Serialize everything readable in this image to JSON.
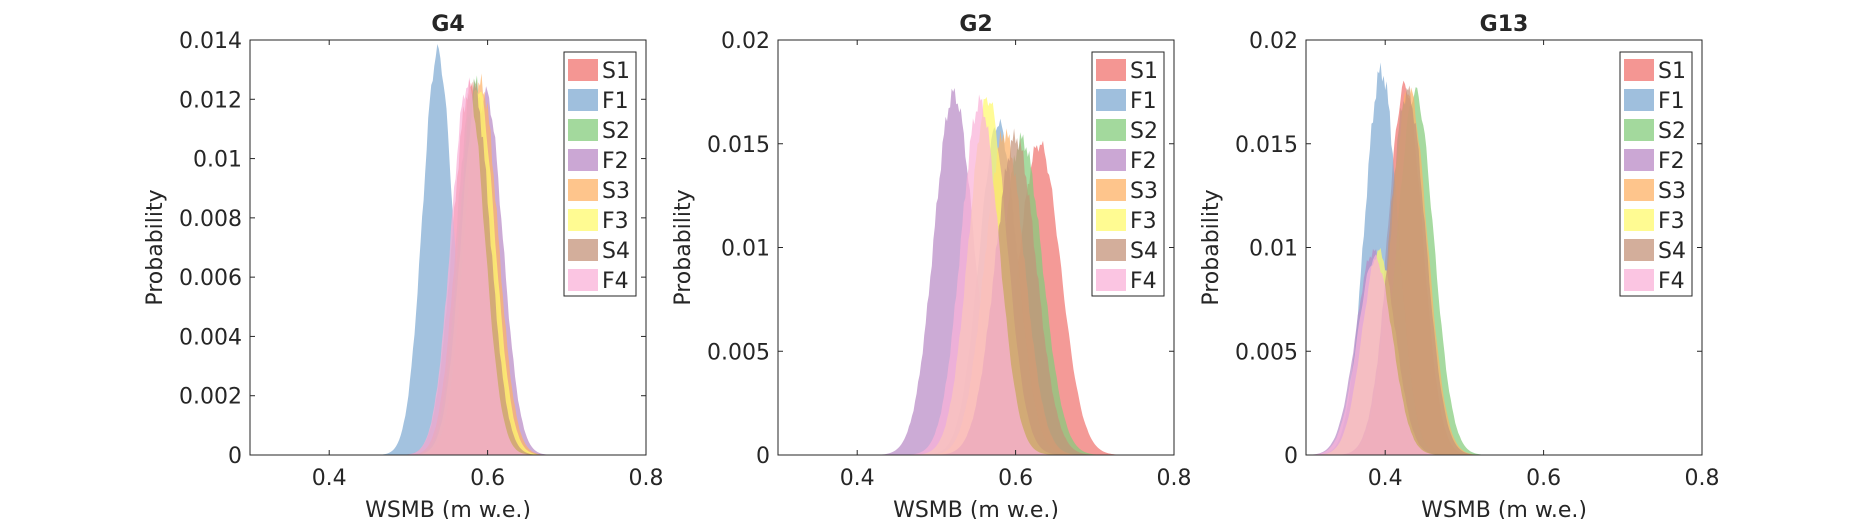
{
  "figure": {
    "background": "#ffffff"
  },
  "chart_data": [
    {
      "type": "area",
      "title": "G4",
      "xlabel": "WSMB (m w.e.)",
      "ylabel": "Probability",
      "xlim": [
        0.3,
        0.8
      ],
      "ylim": [
        0,
        0.014
      ],
      "xticks": [
        0.4,
        0.6,
        0.8
      ],
      "xtick_labels": [
        "0.4",
        "0.6",
        "0.8"
      ],
      "yticks": [
        0,
        0.002,
        0.004,
        0.006,
        0.008,
        0.01,
        0.012,
        0.014
      ],
      "ytick_labels": [
        "0",
        "0.002",
        "0.004",
        "0.006",
        "0.008",
        "0.01",
        "0.012",
        "0.014"
      ],
      "legend_position": "top-right",
      "series": [
        {
          "name": "S1",
          "color": "#f0736f",
          "mean": 0.578,
          "sd": 0.022,
          "peak": 0.0124
        },
        {
          "name": "F1",
          "color": "#7faad2",
          "mean": 0.537,
          "sd": 0.019,
          "peak": 0.0136
        },
        {
          "name": "S2",
          "color": "#84cc7c",
          "mean": 0.585,
          "sd": 0.021,
          "peak": 0.0125
        },
        {
          "name": "F2",
          "color": "#b98ac6",
          "mean": 0.598,
          "sd": 0.021,
          "peak": 0.0122
        },
        {
          "name": "S3",
          "color": "#fdb265",
          "mean": 0.592,
          "sd": 0.021,
          "peak": 0.0125
        },
        {
          "name": "F3",
          "color": "#fffa6e",
          "mean": 0.588,
          "sd": 0.021,
          "peak": 0.0124
        },
        {
          "name": "S4",
          "color": "#c4937a",
          "mean": 0.582,
          "sd": 0.021,
          "peak": 0.0125
        },
        {
          "name": "F4",
          "color": "#f9b2d8",
          "mean": 0.575,
          "sd": 0.021,
          "peak": 0.0125
        }
      ]
    },
    {
      "type": "area",
      "title": "G2",
      "xlabel": "WSMB (m w.e.)",
      "ylabel": "Probability",
      "xlim": [
        0.3,
        0.8
      ],
      "ylim": [
        0,
        0.02
      ],
      "xticks": [
        0.4,
        0.6,
        0.8
      ],
      "xtick_labels": [
        "0.4",
        "0.6",
        "0.8"
      ],
      "yticks": [
        0,
        0.005,
        0.01,
        0.015,
        0.02
      ],
      "ytick_labels": [
        "0",
        "0.005",
        "0.01",
        "0.015",
        "0.02"
      ],
      "legend_position": "top-right",
      "series": [
        {
          "name": "S1",
          "color": "#f0736f",
          "mean": 0.63,
          "sd": 0.027,
          "peak": 0.015
        },
        {
          "name": "F1",
          "color": "#7faad2",
          "mean": 0.578,
          "sd": 0.024,
          "peak": 0.016
        },
        {
          "name": "S2",
          "color": "#84cc7c",
          "mean": 0.608,
          "sd": 0.026,
          "peak": 0.0152
        },
        {
          "name": "F2",
          "color": "#b98ac6",
          "mean": 0.522,
          "sd": 0.025,
          "peak": 0.0174
        },
        {
          "name": "S3",
          "color": "#fdb265",
          "mean": 0.586,
          "sd": 0.025,
          "peak": 0.0155
        },
        {
          "name": "F3",
          "color": "#fffa6e",
          "mean": 0.565,
          "sd": 0.024,
          "peak": 0.0172
        },
        {
          "name": "S4",
          "color": "#c4937a",
          "mean": 0.6,
          "sd": 0.026,
          "peak": 0.0153
        },
        {
          "name": "F4",
          "color": "#f9b2d8",
          "mean": 0.555,
          "sd": 0.024,
          "peak": 0.017
        }
      ]
    },
    {
      "type": "area",
      "title": "G13",
      "xlabel": "WSMB (m w.e.)",
      "ylabel": "Probability",
      "xlim": [
        0.3,
        0.8
      ],
      "ylim": [
        0,
        0.02
      ],
      "xticks": [
        0.4,
        0.6,
        0.8
      ],
      "xtick_labels": [
        "0.4",
        "0.6",
        "0.8"
      ],
      "yticks": [
        0,
        0.005,
        0.01,
        0.015,
        0.02
      ],
      "ytick_labels": [
        "0",
        "0.005",
        "0.01",
        "0.015",
        "0.02"
      ],
      "legend_position": "top-right",
      "series": [
        {
          "name": "S1",
          "color": "#f0736f",
          "mean": 0.425,
          "sd": 0.022,
          "peak": 0.0178
        },
        {
          "name": "F1",
          "color": "#7faad2",
          "mean": 0.395,
          "sd": 0.021,
          "peak": 0.0185
        },
        {
          "name": "S2",
          "color": "#84cc7c",
          "mean": 0.438,
          "sd": 0.023,
          "peak": 0.0175
        },
        {
          "name": "F2",
          "color": "#b98ac6",
          "mean": 0.385,
          "sd": 0.022,
          "peak": 0.0098
        },
        {
          "name": "S3",
          "color": "#fdb265",
          "mean": 0.43,
          "sd": 0.023,
          "peak": 0.0176
        },
        {
          "name": "F3",
          "color": "#fffa6e",
          "mean": 0.392,
          "sd": 0.021,
          "peak": 0.0098
        },
        {
          "name": "S4",
          "color": "#c4937a",
          "mean": 0.428,
          "sd": 0.023,
          "peak": 0.0175
        },
        {
          "name": "F4",
          "color": "#f9b2d8",
          "mean": 0.387,
          "sd": 0.022,
          "peak": 0.0095
        }
      ]
    }
  ]
}
